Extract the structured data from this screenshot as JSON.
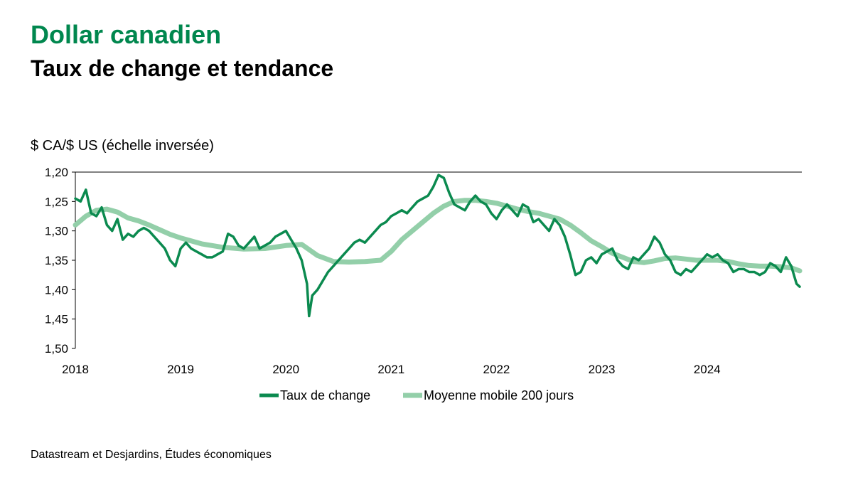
{
  "header": {
    "title": "Dollar canadien",
    "subtitle": "Taux de change et tendance"
  },
  "source": "Datastream et Desjardins, Études économiques",
  "colors": {
    "rate": "#0b8a4f",
    "average": "#93cfa9",
    "title": "#00874e"
  },
  "chart_data": {
    "type": "line",
    "title": "Dollar canadien",
    "subtitle": "Taux de change et tendance",
    "ylabel": "$ CA/$ US (échelle inversée)",
    "xlabel": "",
    "y_inverted": true,
    "ylim": [
      1.2,
      1.5
    ],
    "yticks": [
      "1,20",
      "1,25",
      "1,30",
      "1,35",
      "1,40",
      "1,45",
      "1,50"
    ],
    "xlim": [
      2018.0,
      2024.9
    ],
    "xticks": [
      "2018",
      "2019",
      "2020",
      "2021",
      "2022",
      "2023",
      "2024"
    ],
    "grid": false,
    "legend_position": "bottom",
    "series": [
      {
        "name": "Taux de change",
        "x": [
          2018.0,
          2018.05,
          2018.1,
          2018.15,
          2018.2,
          2018.25,
          2018.3,
          2018.35,
          2018.4,
          2018.45,
          2018.5,
          2018.55,
          2018.6,
          2018.65,
          2018.7,
          2018.75,
          2018.8,
          2018.85,
          2018.9,
          2018.95,
          2019.0,
          2019.05,
          2019.1,
          2019.15,
          2019.2,
          2019.25,
          2019.3,
          2019.35,
          2019.4,
          2019.45,
          2019.5,
          2019.55,
          2019.6,
          2019.65,
          2019.7,
          2019.75,
          2019.8,
          2019.85,
          2019.9,
          2019.95,
          2020.0,
          2020.05,
          2020.1,
          2020.15,
          2020.2,
          2020.22,
          2020.25,
          2020.3,
          2020.35,
          2020.4,
          2020.45,
          2020.5,
          2020.55,
          2020.6,
          2020.65,
          2020.7,
          2020.75,
          2020.8,
          2020.85,
          2020.9,
          2020.95,
          2021.0,
          2021.05,
          2021.1,
          2021.15,
          2021.2,
          2021.25,
          2021.3,
          2021.35,
          2021.4,
          2021.45,
          2021.5,
          2021.55,
          2021.6,
          2021.65,
          2021.7,
          2021.75,
          2021.8,
          2021.85,
          2021.9,
          2021.95,
          2022.0,
          2022.05,
          2022.1,
          2022.15,
          2022.2,
          2022.25,
          2022.3,
          2022.35,
          2022.4,
          2022.45,
          2022.5,
          2022.55,
          2022.6,
          2022.65,
          2022.7,
          2022.75,
          2022.8,
          2022.85,
          2022.9,
          2022.95,
          2023.0,
          2023.05,
          2023.1,
          2023.15,
          2023.2,
          2023.25,
          2023.3,
          2023.35,
          2023.4,
          2023.45,
          2023.5,
          2023.55,
          2023.6,
          2023.65,
          2023.7,
          2023.75,
          2023.8,
          2023.85,
          2023.9,
          2023.95,
          2024.0,
          2024.05,
          2024.1,
          2024.15,
          2024.2,
          2024.25,
          2024.3,
          2024.35,
          2024.4,
          2024.45,
          2024.5,
          2024.55,
          2024.6,
          2024.65,
          2024.7,
          2024.75,
          2024.8,
          2024.85,
          2024.88
        ],
        "values": [
          1.245,
          1.25,
          1.23,
          1.27,
          1.275,
          1.26,
          1.29,
          1.3,
          1.28,
          1.315,
          1.305,
          1.31,
          1.3,
          1.295,
          1.3,
          1.31,
          1.32,
          1.33,
          1.35,
          1.36,
          1.33,
          1.32,
          1.33,
          1.335,
          1.34,
          1.345,
          1.345,
          1.34,
          1.335,
          1.305,
          1.31,
          1.325,
          1.33,
          1.32,
          1.31,
          1.33,
          1.325,
          1.32,
          1.31,
          1.305,
          1.3,
          1.315,
          1.33,
          1.35,
          1.39,
          1.445,
          1.41,
          1.4,
          1.385,
          1.37,
          1.36,
          1.35,
          1.34,
          1.33,
          1.32,
          1.315,
          1.32,
          1.31,
          1.3,
          1.29,
          1.285,
          1.275,
          1.27,
          1.265,
          1.27,
          1.26,
          1.25,
          1.245,
          1.24,
          1.225,
          1.205,
          1.21,
          1.235,
          1.255,
          1.26,
          1.265,
          1.25,
          1.24,
          1.25,
          1.255,
          1.27,
          1.28,
          1.265,
          1.255,
          1.265,
          1.275,
          1.255,
          1.26,
          1.285,
          1.28,
          1.29,
          1.3,
          1.28,
          1.29,
          1.31,
          1.34,
          1.375,
          1.37,
          1.35,
          1.345,
          1.355,
          1.34,
          1.335,
          1.33,
          1.35,
          1.36,
          1.365,
          1.345,
          1.35,
          1.34,
          1.33,
          1.31,
          1.32,
          1.34,
          1.35,
          1.37,
          1.375,
          1.365,
          1.37,
          1.36,
          1.35,
          1.34,
          1.345,
          1.34,
          1.35,
          1.355,
          1.37,
          1.365,
          1.365,
          1.37,
          1.37,
          1.375,
          1.37,
          1.355,
          1.36,
          1.37,
          1.345,
          1.36,
          1.39,
          1.395
        ]
      },
      {
        "name": "Moyenne mobile 200 jours",
        "x": [
          2018.0,
          2018.1,
          2018.2,
          2018.3,
          2018.4,
          2018.5,
          2018.6,
          2018.7,
          2018.8,
          2018.9,
          2019.0,
          2019.2,
          2019.4,
          2019.6,
          2019.8,
          2020.0,
          2020.15,
          2020.3,
          2020.45,
          2020.6,
          2020.75,
          2020.9,
          2021.0,
          2021.1,
          2021.2,
          2021.3,
          2021.4,
          2021.5,
          2021.6,
          2021.7,
          2021.8,
          2021.9,
          2022.0,
          2022.1,
          2022.2,
          2022.3,
          2022.4,
          2022.5,
          2022.6,
          2022.7,
          2022.8,
          2022.9,
          2023.0,
          2023.1,
          2023.2,
          2023.3,
          2023.4,
          2023.5,
          2023.6,
          2023.7,
          2023.8,
          2023.9,
          2024.0,
          2024.1,
          2024.2,
          2024.3,
          2024.4,
          2024.5,
          2024.6,
          2024.7,
          2024.8,
          2024.88
        ],
        "values": [
          1.29,
          1.275,
          1.265,
          1.263,
          1.268,
          1.278,
          1.283,
          1.29,
          1.298,
          1.306,
          1.312,
          1.322,
          1.328,
          1.331,
          1.33,
          1.325,
          1.323,
          1.342,
          1.352,
          1.353,
          1.352,
          1.35,
          1.335,
          1.315,
          1.3,
          1.285,
          1.27,
          1.258,
          1.25,
          1.248,
          1.248,
          1.25,
          1.253,
          1.258,
          1.263,
          1.267,
          1.27,
          1.275,
          1.28,
          1.29,
          1.303,
          1.317,
          1.327,
          1.338,
          1.345,
          1.352,
          1.354,
          1.351,
          1.347,
          1.346,
          1.348,
          1.35,
          1.35,
          1.35,
          1.352,
          1.356,
          1.359,
          1.36,
          1.36,
          1.361,
          1.363,
          1.368
        ]
      }
    ]
  }
}
